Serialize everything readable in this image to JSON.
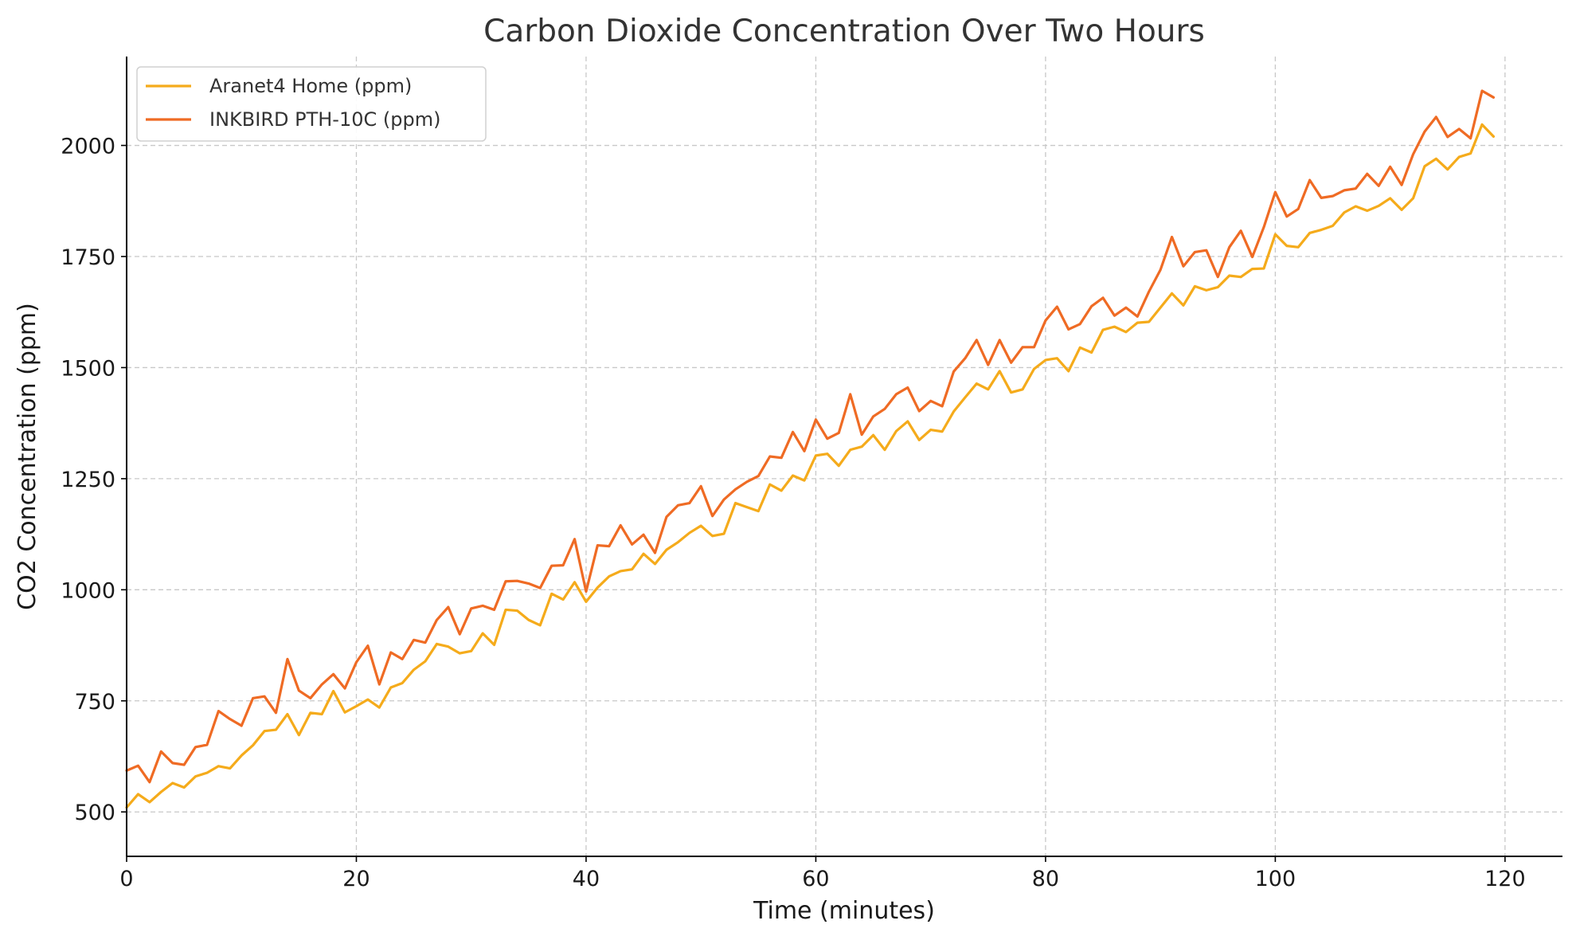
{
  "chart_data": {
    "type": "line",
    "title": "Carbon Dioxide Concentration Over Two Hours",
    "xlabel": "Time (minutes)",
    "ylabel": "CO2 Concentration (ppm)",
    "xlim": [
      0,
      125
    ],
    "ylim": [
      400,
      2200
    ],
    "xticks": [
      0,
      20,
      40,
      60,
      80,
      100,
      120
    ],
    "yticks": [
      500,
      750,
      1000,
      1250,
      1500,
      1750,
      2000
    ],
    "xtick_labels": [
      "0",
      "20",
      "40",
      "60",
      "80",
      "100",
      "120"
    ],
    "ytick_labels": [
      "500",
      "750",
      "1000",
      "1250",
      "1500",
      "1750",
      "2000"
    ],
    "grid": true,
    "legend_position": "top-left",
    "x": [
      0,
      1,
      2,
      3,
      4,
      5,
      6,
      7,
      8,
      9,
      10,
      11,
      12,
      13,
      14,
      15,
      16,
      17,
      18,
      19,
      20,
      21,
      22,
      23,
      24,
      25,
      26,
      27,
      28,
      29,
      30,
      31,
      32,
      33,
      34,
      35,
      36,
      37,
      38,
      39,
      40,
      41,
      42,
      43,
      44,
      45,
      46,
      47,
      48,
      49,
      50,
      51,
      52,
      53,
      54,
      55,
      56,
      57,
      58,
      59,
      60,
      61,
      62,
      63,
      64,
      65,
      66,
      67,
      68,
      69,
      70,
      71,
      72,
      73,
      74,
      75,
      76,
      77,
      78,
      79,
      80,
      81,
      82,
      83,
      84,
      85,
      86,
      87,
      88,
      89,
      90,
      91,
      92,
      93,
      94,
      95,
      96,
      97,
      98,
      99,
      100,
      101,
      102,
      103,
      104,
      105,
      106,
      107,
      108,
      109,
      110,
      111,
      112,
      113,
      114,
      115,
      116,
      117,
      118,
      119
    ],
    "series": [
      {
        "name": "Aranet4 Home (ppm)",
        "color": "#f5ab1b",
        "values": [
          510,
          540,
          522,
          545,
          565,
          555,
          580,
          588,
          603,
          598,
          627,
          650,
          682,
          685,
          720,
          673,
          723,
          720,
          772,
          724,
          738,
          753,
          735,
          780,
          790,
          820,
          839,
          878,
          872,
          857,
          862,
          902,
          876,
          955,
          953,
          932,
          920,
          991,
          978,
          1017,
          973,
          1005,
          1030,
          1042,
          1046,
          1081,
          1058,
          1090,
          1107,
          1128,
          1144,
          1121,
          1126,
          1195,
          1186,
          1177,
          1237,
          1223,
          1257,
          1246,
          1302,
          1306,
          1279,
          1315,
          1322,
          1348,
          1315,
          1357,
          1379,
          1337,
          1360,
          1356,
          1401,
          1433,
          1464,
          1451,
          1492,
          1444,
          1451,
          1497,
          1517,
          1521,
          1492,
          1545,
          1534,
          1585,
          1592,
          1580,
          1601,
          1603,
          1635,
          1667,
          1640,
          1683,
          1674,
          1681,
          1707,
          1704,
          1722,
          1723,
          1800,
          1774,
          1771,
          1803,
          1810,
          1819,
          1849,
          1863,
          1853,
          1864,
          1881,
          1855,
          1881,
          1953,
          1970,
          1946,
          1974,
          1982,
          2047,
          2020
        ]
      },
      {
        "name": "INKBIRD PTH-10C (ppm)",
        "color": "#ef6b24",
        "values": [
          593,
          604,
          567,
          636,
          610,
          606,
          646,
          651,
          727,
          709,
          694,
          756,
          760,
          723,
          844,
          773,
          756,
          787,
          810,
          778,
          837,
          874,
          787,
          859,
          844,
          887,
          881,
          932,
          961,
          900,
          958,
          964,
          955,
          1019,
          1020,
          1014,
          1004,
          1054,
          1055,
          1114,
          996,
          1100,
          1098,
          1145,
          1102,
          1124,
          1083,
          1164,
          1190,
          1195,
          1233,
          1166,
          1203,
          1226,
          1243,
          1256,
          1300,
          1297,
          1355,
          1312,
          1383,
          1340,
          1353,
          1440,
          1349,
          1390,
          1407,
          1440,
          1455,
          1402,
          1425,
          1413,
          1491,
          1521,
          1562,
          1506,
          1562,
          1511,
          1546,
          1546,
          1606,
          1637,
          1586,
          1598,
          1638,
          1657,
          1617,
          1635,
          1615,
          1671,
          1720,
          1794,
          1728,
          1760,
          1764,
          1704,
          1771,
          1808,
          1749,
          1816,
          1895,
          1840,
          1857,
          1922,
          1882,
          1886,
          1899,
          1903,
          1936,
          1909,
          1952,
          1911,
          1980,
          2031,
          2064,
          2019,
          2037,
          2016,
          2123,
          2108
        ]
      }
    ]
  }
}
